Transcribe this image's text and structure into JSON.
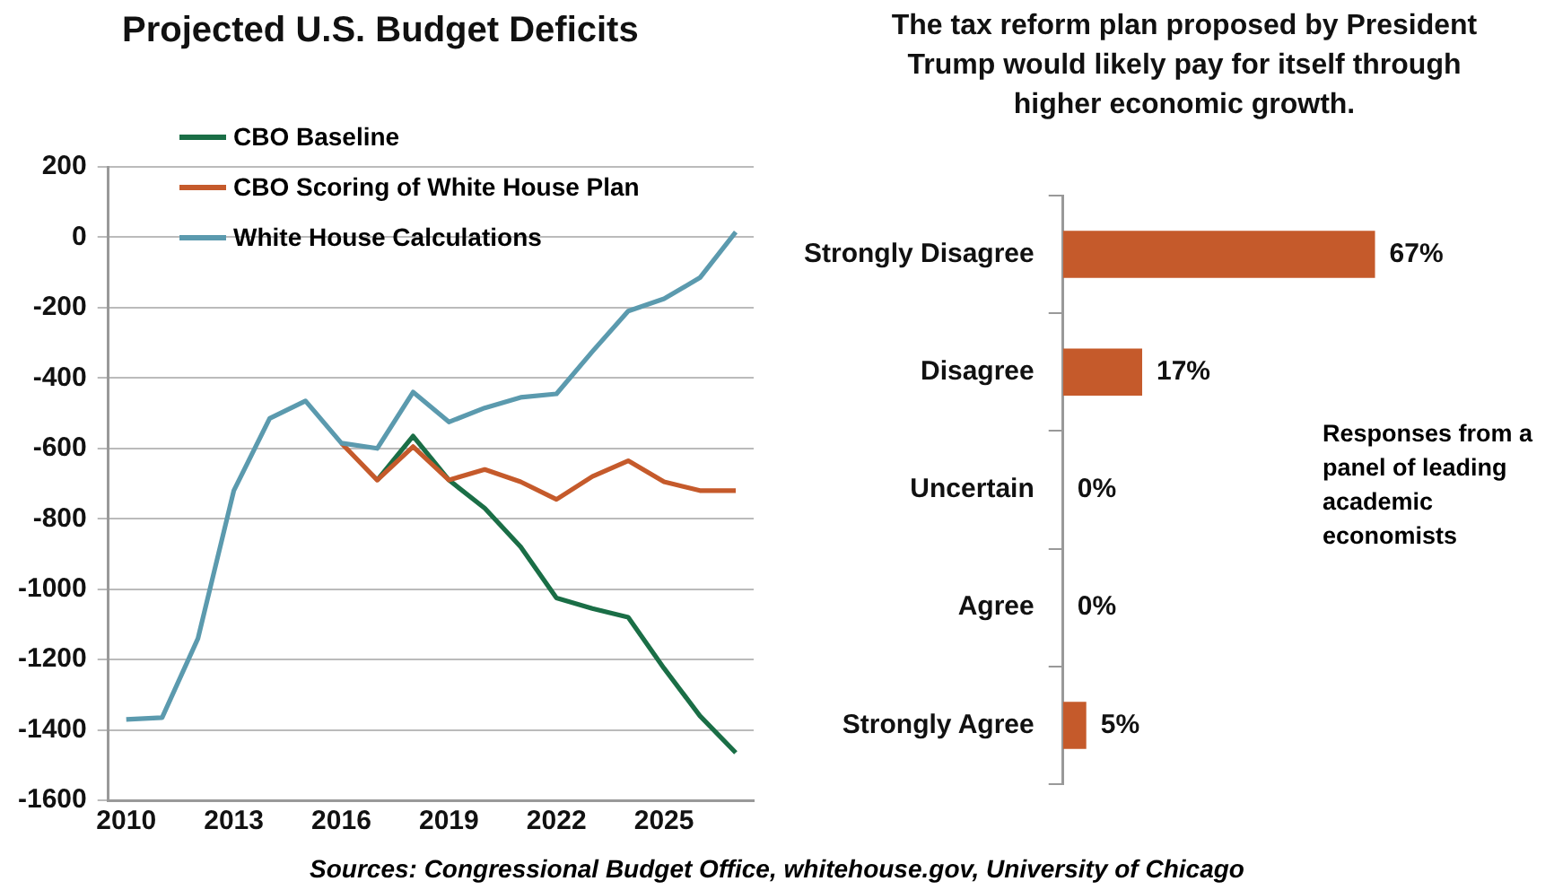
{
  "chart_data": [
    {
      "type": "line",
      "title": "Projected U.S. Budget Deficits",
      "x": [
        2010,
        2011,
        2012,
        2013,
        2014,
        2015,
        2016,
        2017,
        2018,
        2019,
        2020,
        2021,
        2022,
        2023,
        2024,
        2025,
        2026,
        2027
      ],
      "series": [
        {
          "name": "CBO Baseline",
          "color": "#1a6e46",
          "values": [
            null,
            null,
            null,
            null,
            null,
            null,
            null,
            -690,
            -565,
            -690,
            -770,
            -880,
            -1025,
            -1055,
            -1080,
            -1225,
            -1360,
            -1465
          ]
        },
        {
          "name": "CBO Scoring of White House Plan",
          "color": "#c55a2b",
          "values": [
            null,
            null,
            null,
            null,
            null,
            null,
            -585,
            -690,
            -595,
            -690,
            -660,
            -695,
            -745,
            -680,
            -635,
            -695,
            -720,
            -720
          ]
        },
        {
          "name": "White House Calculations",
          "color": "#5b9aae",
          "values": [
            -1370,
            -1365,
            -1140,
            -720,
            -515,
            -465,
            -585,
            -600,
            -440,
            -525,
            -485,
            -455,
            -445,
            -325,
            -210,
            -175,
            -115,
            15
          ]
        }
      ],
      "xlim": [
        2009.5,
        2027.5
      ],
      "xticks": [
        2010,
        2013,
        2016,
        2019,
        2022,
        2025
      ],
      "ylim": [
        -1600,
        200
      ],
      "yticks": [
        -1600,
        -1400,
        -1200,
        -1000,
        -800,
        -600,
        -400,
        -200,
        0,
        200
      ],
      "grid": "y",
      "legend": "top left",
      "marker": "none",
      "line_style": "solid",
      "annotations": [
        "Sources: Congressional Budget Office, whitehouse.gov, University of Chicago"
      ]
    },
    {
      "type": "bar",
      "orientation": "horizontal",
      "title": "The tax reform plan proposed by President Trump would likely pay for itself through higher economic growth.",
      "categories": [
        "Strongly Disagree",
        "Disagree",
        "Uncertain",
        "Agree",
        "Strongly Agree"
      ],
      "values": [
        67,
        17,
        0,
        0,
        5
      ],
      "color": "#c55a2b",
      "value_labels": [
        "67%",
        "17%",
        "0%",
        "0%",
        "5%"
      ],
      "annotations": [
        "Responses from a panel of leading academic economists"
      ]
    }
  ]
}
